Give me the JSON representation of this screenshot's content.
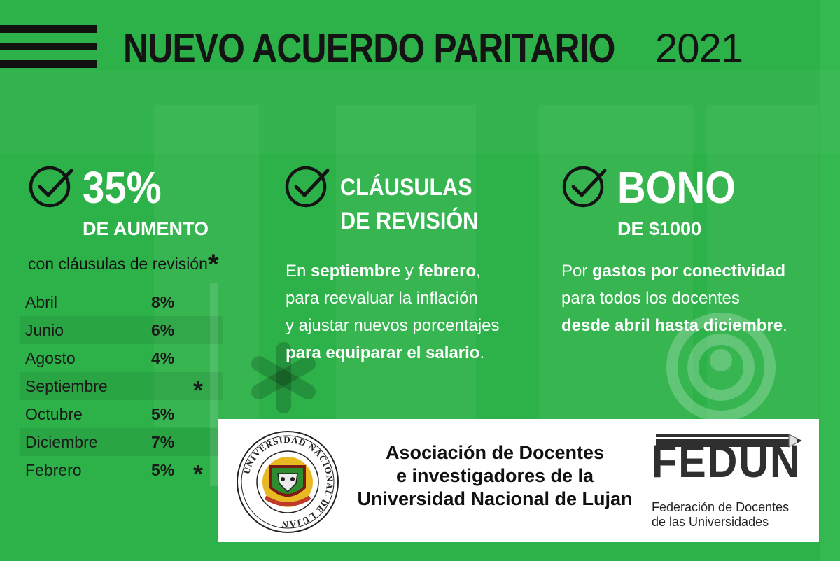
{
  "title": {
    "main": "NUEVO ACUERDO PARITARIO",
    "year": "2021"
  },
  "col1": {
    "headline": "35%",
    "sub": "DE AUMENTO",
    "note": "con cláusulas de revisión",
    "note_star": "*",
    "months": [
      {
        "name": "Abril",
        "value": "8%",
        "star": ""
      },
      {
        "name": "Junio",
        "value": "6%",
        "star": ""
      },
      {
        "name": "Agosto",
        "value": "4%",
        "star": ""
      },
      {
        "name": "Septiembre",
        "value": "",
        "star": "*"
      },
      {
        "name": "Octubre",
        "value": "5%",
        "star": ""
      },
      {
        "name": "Diciembre",
        "value": "7%",
        "star": ""
      },
      {
        "name": "Febrero",
        "value": "5%",
        "star": "*"
      }
    ]
  },
  "col2": {
    "title_line1": "CLÁUSULAS",
    "title_line2": "DE REVISIÓN",
    "body": {
      "l1a": "En ",
      "l1b": "septiembre",
      "l1c": " y ",
      "l1d": "febrero",
      "l1e": ",",
      "l2": "para reevaluar la inflación",
      "l3": "y ajustar nuevos porcentajes",
      "l4": "para equiparar el salario",
      "l4e": "."
    }
  },
  "col3": {
    "headline": "BONO",
    "sub": "DE $1000",
    "body": {
      "l1a": "Por ",
      "l1b": "gastos por conectividad",
      "l2": "para todos los docentes",
      "l3": "desde abril hasta diciembre",
      "l3e": "."
    }
  },
  "footer": {
    "assoc_l1": "Asociación de Docentes",
    "assoc_l2": "e investigadores de la",
    "assoc_l3": "Universidad Nacional de Lujan",
    "seal_text": "UNIVERSIDAD NACIONAL DE LUJAN",
    "fedun_word": "FEDUN",
    "fedun_sub1": "Federación de Docentes",
    "fedun_sub2": "de las Universidades"
  },
  "colors": {
    "background": "#2db24a",
    "dark": "#141414",
    "white": "#ffffff"
  },
  "icons": [
    "check-circle-icon",
    "wifi-person-icon",
    "asterisk-icon"
  ]
}
